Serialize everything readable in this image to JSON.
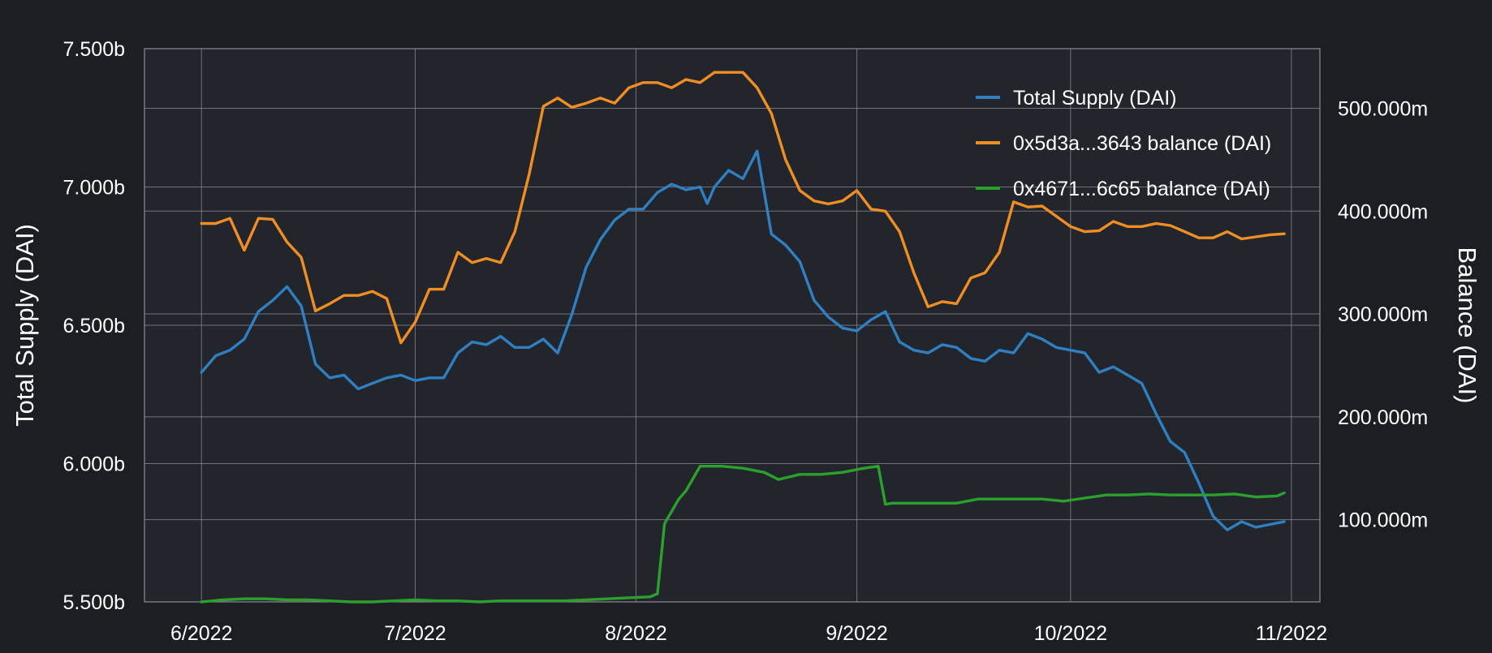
{
  "chart_data": {
    "type": "line",
    "background": "#1b1e22",
    "plot_background": "#22262c",
    "grid": true,
    "legend_position": "top-right",
    "ylabel_left": "Total Supply (DAI)",
    "ylabel_right": "Balance (DAI)",
    "x_axis": {
      "type": "date",
      "range": [
        "2022-05-24",
        "2022-11-05"
      ],
      "ticks": [
        {
          "date": "2022-06-01",
          "label": "6/2022"
        },
        {
          "date": "2022-07-01",
          "label": "7/2022"
        },
        {
          "date": "2022-08-01",
          "label": "8/2022"
        },
        {
          "date": "2022-09-01",
          "label": "9/2022"
        },
        {
          "date": "2022-10-01",
          "label": "10/2022"
        },
        {
          "date": "2022-11-01",
          "label": "11/2022"
        }
      ]
    },
    "y_left": {
      "range": [
        5.5,
        7.5
      ],
      "unit": "billion DAI",
      "ticks": [
        {
          "value": 5.5,
          "label": "5.500b"
        },
        {
          "value": 6.0,
          "label": "6.000b"
        },
        {
          "value": 6.5,
          "label": "6.500b"
        },
        {
          "value": 7.0,
          "label": "7.000b"
        },
        {
          "value": 7.5,
          "label": "7.500b"
        }
      ]
    },
    "y_right": {
      "range": [
        20,
        558
      ],
      "unit": "million DAI",
      "ticks": [
        {
          "value": 100,
          "label": "100.000m"
        },
        {
          "value": 200,
          "label": "200.000m"
        },
        {
          "value": 300,
          "label": "300.000m"
        },
        {
          "value": 400,
          "label": "400.000m"
        },
        {
          "value": 500,
          "label": "500.000m"
        }
      ]
    },
    "series": [
      {
        "name": "Total Supply (DAI)",
        "color": "#2f7fc1",
        "axis": "left",
        "dates": [
          "2022-06-01",
          "2022-06-03",
          "2022-06-05",
          "2022-06-07",
          "2022-06-09",
          "2022-06-11",
          "2022-06-13",
          "2022-06-15",
          "2022-06-17",
          "2022-06-19",
          "2022-06-21",
          "2022-06-23",
          "2022-06-25",
          "2022-06-27",
          "2022-06-29",
          "2022-07-01",
          "2022-07-03",
          "2022-07-05",
          "2022-07-07",
          "2022-07-09",
          "2022-07-11",
          "2022-07-13",
          "2022-07-15",
          "2022-07-17",
          "2022-07-19",
          "2022-07-21",
          "2022-07-23",
          "2022-07-25",
          "2022-07-27",
          "2022-07-29",
          "2022-07-31",
          "2022-08-02",
          "2022-08-04",
          "2022-08-06",
          "2022-08-08",
          "2022-08-10",
          "2022-08-11",
          "2022-08-12",
          "2022-08-14",
          "2022-08-16",
          "2022-08-18",
          "2022-08-20",
          "2022-08-22",
          "2022-08-24",
          "2022-08-26",
          "2022-08-28",
          "2022-08-30",
          "2022-09-01",
          "2022-09-03",
          "2022-09-05",
          "2022-09-07",
          "2022-09-09",
          "2022-09-11",
          "2022-09-13",
          "2022-09-15",
          "2022-09-17",
          "2022-09-19",
          "2022-09-21",
          "2022-09-23",
          "2022-09-25",
          "2022-09-27",
          "2022-09-29",
          "2022-10-01",
          "2022-10-03",
          "2022-10-05",
          "2022-10-07",
          "2022-10-09",
          "2022-10-11",
          "2022-10-13",
          "2022-10-15",
          "2022-10-17",
          "2022-10-19",
          "2022-10-21",
          "2022-10-23",
          "2022-10-25",
          "2022-10-27",
          "2022-10-29",
          "2022-10-31"
        ],
        "values": [
          6.33,
          6.39,
          6.41,
          6.45,
          6.55,
          6.59,
          6.64,
          6.57,
          6.36,
          6.31,
          6.32,
          6.27,
          6.29,
          6.31,
          6.32,
          6.3,
          6.31,
          6.31,
          6.4,
          6.44,
          6.43,
          6.46,
          6.42,
          6.42,
          6.45,
          6.4,
          6.54,
          6.71,
          6.81,
          6.88,
          6.92,
          6.92,
          6.98,
          7.01,
          6.99,
          7.0,
          6.94,
          7.0,
          7.06,
          7.03,
          7.13,
          6.83,
          6.79,
          6.73,
          6.59,
          6.53,
          6.49,
          6.48,
          6.52,
          6.55,
          6.44,
          6.41,
          6.4,
          6.43,
          6.42,
          6.38,
          6.37,
          6.41,
          6.4,
          6.47,
          6.45,
          6.42,
          6.41,
          6.4,
          6.33,
          6.35,
          6.32,
          6.29,
          6.18,
          6.08,
          6.04,
          5.93,
          5.81,
          5.76,
          5.79,
          5.77,
          5.78,
          5.79
        ]
      },
      {
        "name": "0x5d3a...3643 balance (DAI)",
        "color": "#f08e24",
        "axis": "right",
        "dates": [
          "2022-06-01",
          "2022-06-03",
          "2022-06-05",
          "2022-06-07",
          "2022-06-09",
          "2022-06-11",
          "2022-06-13",
          "2022-06-15",
          "2022-06-17",
          "2022-06-19",
          "2022-06-21",
          "2022-06-23",
          "2022-06-25",
          "2022-06-27",
          "2022-06-29",
          "2022-07-01",
          "2022-07-03",
          "2022-07-05",
          "2022-07-07",
          "2022-07-09",
          "2022-07-11",
          "2022-07-13",
          "2022-07-15",
          "2022-07-17",
          "2022-07-19",
          "2022-07-21",
          "2022-07-23",
          "2022-07-25",
          "2022-07-27",
          "2022-07-29",
          "2022-07-31",
          "2022-08-02",
          "2022-08-04",
          "2022-08-06",
          "2022-08-08",
          "2022-08-10",
          "2022-08-11",
          "2022-08-12",
          "2022-08-14",
          "2022-08-16",
          "2022-08-18",
          "2022-08-20",
          "2022-08-22",
          "2022-08-24",
          "2022-08-26",
          "2022-08-28",
          "2022-08-30",
          "2022-09-01",
          "2022-09-03",
          "2022-09-05",
          "2022-09-07",
          "2022-09-09",
          "2022-09-11",
          "2022-09-13",
          "2022-09-15",
          "2022-09-17",
          "2022-09-19",
          "2022-09-21",
          "2022-09-23",
          "2022-09-25",
          "2022-09-27",
          "2022-09-29",
          "2022-10-01",
          "2022-10-03",
          "2022-10-05",
          "2022-10-07",
          "2022-10-09",
          "2022-10-11",
          "2022-10-13",
          "2022-10-15",
          "2022-10-17",
          "2022-10-19",
          "2022-10-21",
          "2022-10-23",
          "2022-10-25",
          "2022-10-27",
          "2022-10-29",
          "2022-10-31"
        ],
        "values": [
          388,
          388,
          393,
          362,
          393,
          392,
          370,
          355,
          303,
          310,
          318,
          318,
          322,
          315,
          272,
          292,
          324,
          324,
          360,
          350,
          354,
          350,
          380,
          436,
          502,
          510,
          501,
          505,
          510,
          505,
          520,
          525,
          525,
          520,
          528,
          525,
          530,
          535,
          535,
          535,
          520,
          495,
          450,
          420,
          410,
          407,
          410,
          420,
          402,
          400,
          380,
          340,
          307,
          312,
          310,
          335,
          340,
          360,
          409,
          404,
          405,
          395,
          385,
          380,
          381,
          390,
          385,
          385,
          388,
          386,
          380,
          374,
          374,
          380,
          373,
          375,
          377,
          378
        ]
      },
      {
        "name": "0x4671...6c65 balance (DAI)",
        "color": "#2ca02c",
        "axis": "right",
        "dates": [
          "2022-06-01",
          "2022-06-04",
          "2022-06-07",
          "2022-06-10",
          "2022-06-13",
          "2022-06-16",
          "2022-06-19",
          "2022-06-22",
          "2022-06-25",
          "2022-06-28",
          "2022-07-01",
          "2022-07-04",
          "2022-07-07",
          "2022-07-10",
          "2022-07-13",
          "2022-07-16",
          "2022-07-19",
          "2022-07-22",
          "2022-07-25",
          "2022-07-28",
          "2022-07-31",
          "2022-08-03",
          "2022-08-04",
          "2022-08-05",
          "2022-08-07",
          "2022-08-08",
          "2022-08-10",
          "2022-08-13",
          "2022-08-16",
          "2022-08-19",
          "2022-08-21",
          "2022-08-24",
          "2022-08-27",
          "2022-08-30",
          "2022-09-02",
          "2022-09-04",
          "2022-09-05",
          "2022-09-06",
          "2022-09-09",
          "2022-09-12",
          "2022-09-15",
          "2022-09-18",
          "2022-09-21",
          "2022-09-24",
          "2022-09-27",
          "2022-09-30",
          "2022-10-03",
          "2022-10-06",
          "2022-10-09",
          "2022-10-12",
          "2022-10-15",
          "2022-10-18",
          "2022-10-21",
          "2022-10-24",
          "2022-10-27",
          "2022-10-30",
          "2022-10-31"
        ],
        "values": [
          20,
          22,
          23,
          23,
          22,
          22,
          21,
          20,
          20,
          21,
          22,
          21,
          21,
          20,
          21,
          21,
          21,
          21,
          22,
          23,
          24,
          25,
          28,
          96,
          120,
          128,
          152,
          152,
          150,
          146,
          139,
          144,
          144,
          146,
          150,
          152,
          115,
          116,
          116,
          116,
          116,
          120,
          120,
          120,
          120,
          118,
          121,
          124,
          124,
          125,
          124,
          124,
          124,
          125,
          122,
          123,
          126
        ]
      }
    ]
  }
}
